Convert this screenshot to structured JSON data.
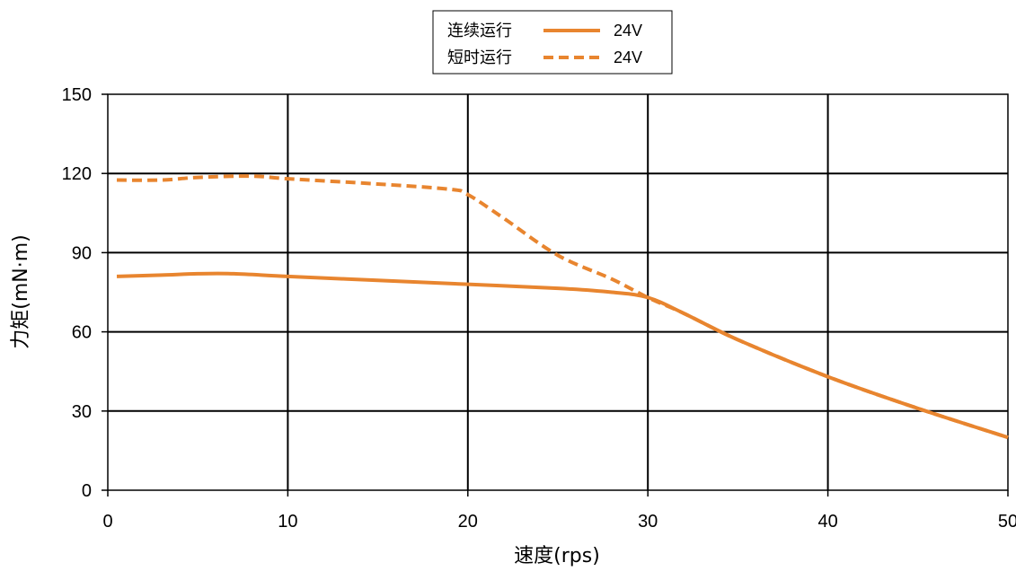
{
  "chart_data": {
    "type": "line",
    "title": "",
    "xlabel": "速度(rps)",
    "ylabel": "力矩(mN·m)",
    "xlim": [
      0,
      50
    ],
    "ylim": [
      0,
      150
    ],
    "xticks": [
      0,
      10,
      20,
      30,
      40,
      50
    ],
    "yticks": [
      0,
      30,
      60,
      90,
      120,
      150
    ],
    "grid": true,
    "legend_position": "top-center",
    "colors": {
      "line": "#E8852F",
      "grid": "#000000"
    },
    "legend": [
      {
        "label": "连续运行",
        "value": "24V",
        "style": "solid"
      },
      {
        "label": "短时运行",
        "value": "24V",
        "style": "dashed"
      }
    ],
    "series": [
      {
        "name": "连续运行 24V",
        "style": "solid",
        "x": [
          0.5,
          3,
          5,
          7,
          10,
          15,
          20,
          25,
          28,
          30,
          32,
          35,
          40,
          45,
          50
        ],
        "y": [
          81,
          81.5,
          82,
          82,
          81,
          79.5,
          78,
          76.5,
          75,
          73,
          67,
          57,
          43,
          31,
          20
        ]
      },
      {
        "name": "短时运行 24V",
        "style": "dashed",
        "x": [
          0.5,
          3,
          5,
          8,
          10,
          15,
          19,
          20,
          22,
          25,
          28,
          30,
          32,
          35,
          40,
          45,
          50
        ],
        "y": [
          117.5,
          117.5,
          118.5,
          119,
          118,
          116,
          114,
          112,
          103,
          89,
          80,
          73,
          67,
          57,
          43,
          31,
          20
        ]
      }
    ]
  }
}
